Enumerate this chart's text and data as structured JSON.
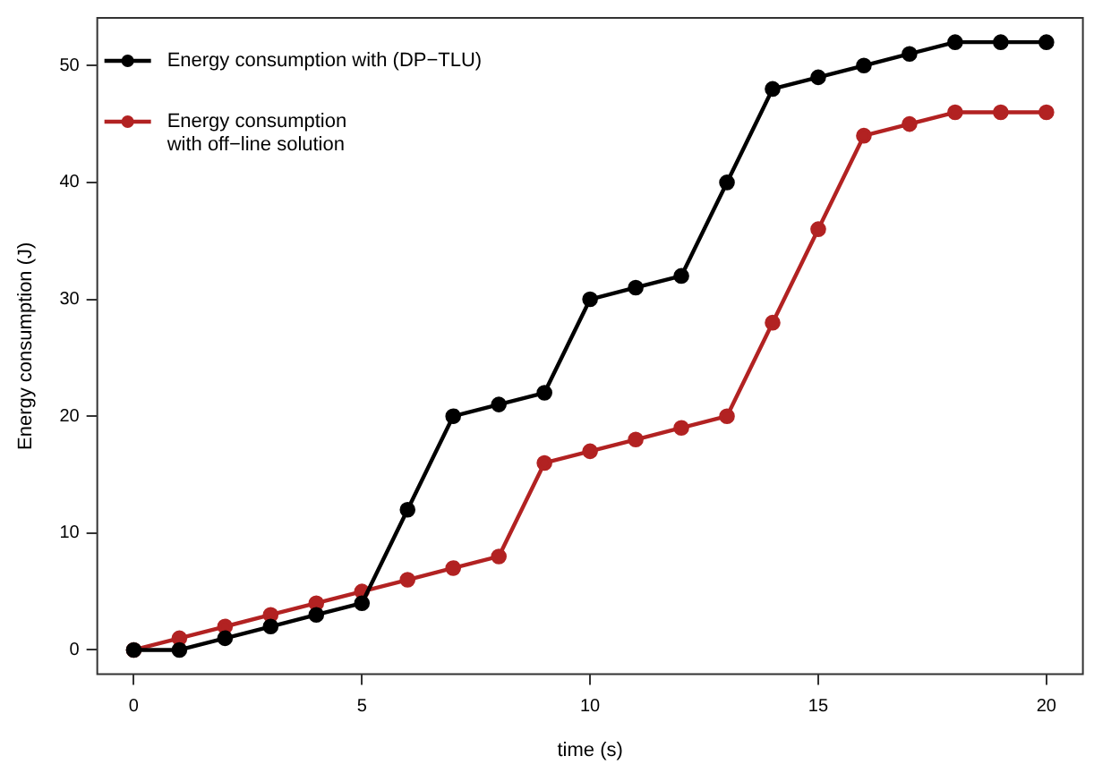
{
  "chart_data": {
    "type": "line",
    "xlabel": "time (s)",
    "ylabel": "Energy consumption (J)",
    "x": [
      0,
      1,
      2,
      3,
      4,
      5,
      6,
      7,
      8,
      9,
      10,
      11,
      12,
      13,
      14,
      15,
      16,
      17,
      18,
      19,
      20
    ],
    "series": [
      {
        "name": "Energy consumption with (DP−TLU)",
        "color": "#000000",
        "values": [
          0,
          0,
          1,
          2,
          3,
          4,
          12,
          20,
          21,
          22,
          30,
          31,
          32,
          40,
          48,
          49,
          50,
          51,
          52,
          52,
          52
        ]
      },
      {
        "name": "Energy consumption\nwith off−line solution",
        "color": "#b22222",
        "values": [
          0,
          1,
          2,
          3,
          4,
          5,
          6,
          7,
          8,
          16,
          17,
          18,
          19,
          20,
          28,
          36,
          44,
          45,
          46,
          46,
          46
        ]
      }
    ],
    "xlim": [
      -0.8,
      20.8
    ],
    "ylim": [
      -2.08,
      54.08
    ],
    "xticks": [
      0,
      5,
      10,
      15,
      20
    ],
    "yticks": [
      0,
      10,
      20,
      30,
      40,
      50
    ],
    "grid": false,
    "legend": "top left",
    "marker": "circle",
    "line_style": "solid"
  }
}
